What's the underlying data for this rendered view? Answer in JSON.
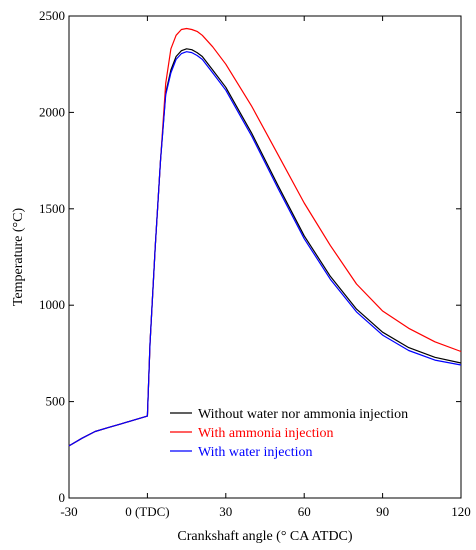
{
  "chart_data": {
    "type": "line",
    "title": "",
    "xlabel": "Crankshaft angle (° CA ATDC)",
    "ylabel": "Temperature (°C)",
    "xlim": [
      -30,
      120
    ],
    "ylim": [
      0,
      2500
    ],
    "xticks": [
      {
        "value": -30,
        "label": "-30"
      },
      {
        "value": 0,
        "label": "0 (TDC)"
      },
      {
        "value": 30,
        "label": "30"
      },
      {
        "value": 60,
        "label": "60"
      },
      {
        "value": 90,
        "label": "90"
      },
      {
        "value": 120,
        "label": "120"
      }
    ],
    "yticks": [
      {
        "value": 0,
        "label": "0"
      },
      {
        "value": 500,
        "label": "500"
      },
      {
        "value": 1000,
        "label": "1000"
      },
      {
        "value": 1500,
        "label": "1500"
      },
      {
        "value": 2000,
        "label": "2000"
      },
      {
        "value": 2500,
        "label": "2500"
      }
    ],
    "grid": false,
    "legend_position": "bottom-center",
    "series": [
      {
        "name": "Without water nor ammonia injection",
        "color": "#000000",
        "x": [
          -30,
          -25,
          -20,
          -15,
          -10,
          -5,
          0,
          1,
          3,
          5,
          7,
          9,
          11,
          13,
          15,
          17,
          19,
          21,
          25,
          30,
          40,
          50,
          60,
          70,
          80,
          90,
          100,
          110,
          120
        ],
        "y": [
          270,
          310,
          345,
          365,
          385,
          405,
          425,
          800,
          1300,
          1750,
          2100,
          2220,
          2290,
          2320,
          2330,
          2325,
          2310,
          2290,
          2220,
          2130,
          1890,
          1620,
          1360,
          1150,
          980,
          860,
          780,
          730,
          700
        ]
      },
      {
        "name": "With ammonia injection",
        "color": "#ff0000",
        "x": [
          -30,
          -25,
          -20,
          -15,
          -10,
          -5,
          0,
          1,
          3,
          5,
          7,
          9,
          11,
          13,
          15,
          17,
          19,
          21,
          25,
          30,
          40,
          50,
          60,
          70,
          80,
          90,
          100,
          110,
          120
        ],
        "y": [
          270,
          310,
          345,
          365,
          385,
          405,
          425,
          800,
          1300,
          1750,
          2150,
          2330,
          2400,
          2430,
          2435,
          2430,
          2420,
          2400,
          2340,
          2250,
          2030,
          1780,
          1530,
          1310,
          1110,
          970,
          880,
          810,
          760
        ]
      },
      {
        "name": "With water injection",
        "color": "#0000ff",
        "x": [
          -30,
          -25,
          -20,
          -15,
          -10,
          -5,
          0,
          1,
          3,
          5,
          7,
          9,
          11,
          13,
          15,
          17,
          19,
          21,
          25,
          30,
          40,
          50,
          60,
          70,
          80,
          90,
          100,
          110,
          120
        ],
        "y": [
          270,
          310,
          345,
          365,
          385,
          405,
          425,
          800,
          1300,
          1750,
          2090,
          2205,
          2275,
          2305,
          2315,
          2310,
          2295,
          2275,
          2205,
          2115,
          1875,
          1605,
          1345,
          1135,
          965,
          845,
          765,
          715,
          690
        ]
      }
    ]
  }
}
